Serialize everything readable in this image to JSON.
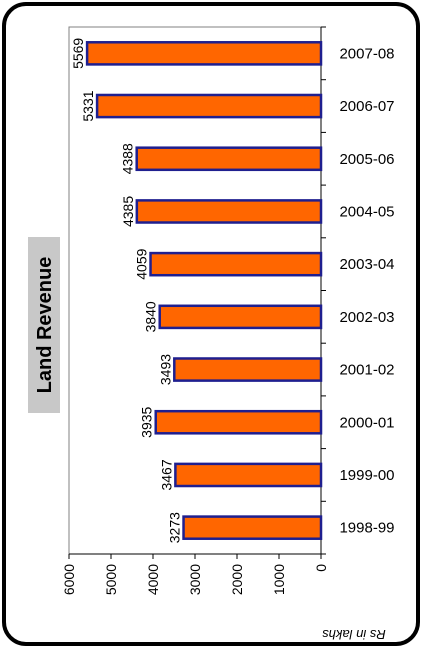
{
  "chart_data": {
    "type": "bar",
    "orientation": "rotated-horizontal",
    "title": "Land Revenue",
    "unit_label": "Rs in lakhs",
    "categories": [
      "1998-99",
      "1999-00",
      "2000-01",
      "2001-02",
      "2002-03",
      "2003-04",
      "2004-05",
      "2005-06",
      "2006-07",
      "2007-08"
    ],
    "values": [
      3273,
      3467,
      3935,
      3493,
      3840,
      4059,
      4385,
      4388,
      5331,
      5569
    ],
    "value_labels": [
      "3273",
      "3467",
      "3935",
      "3493",
      "3840",
      "4059",
      "4385",
      "4388",
      "5331",
      "5569"
    ],
    "ticks": [
      0,
      1000,
      2000,
      3000,
      4000,
      5000,
      6000
    ],
    "tick_labels": [
      "0",
      "1000",
      "2000",
      "3000",
      "4000",
      "5000",
      "6000"
    ],
    "ylim": [
      0,
      6000
    ],
    "grid": false,
    "colors": {
      "bar_fill": "#ff6600",
      "bar_stroke": "#1f1f8f",
      "title_bg": "#c8c8c8",
      "frame": "#000000"
    }
  }
}
